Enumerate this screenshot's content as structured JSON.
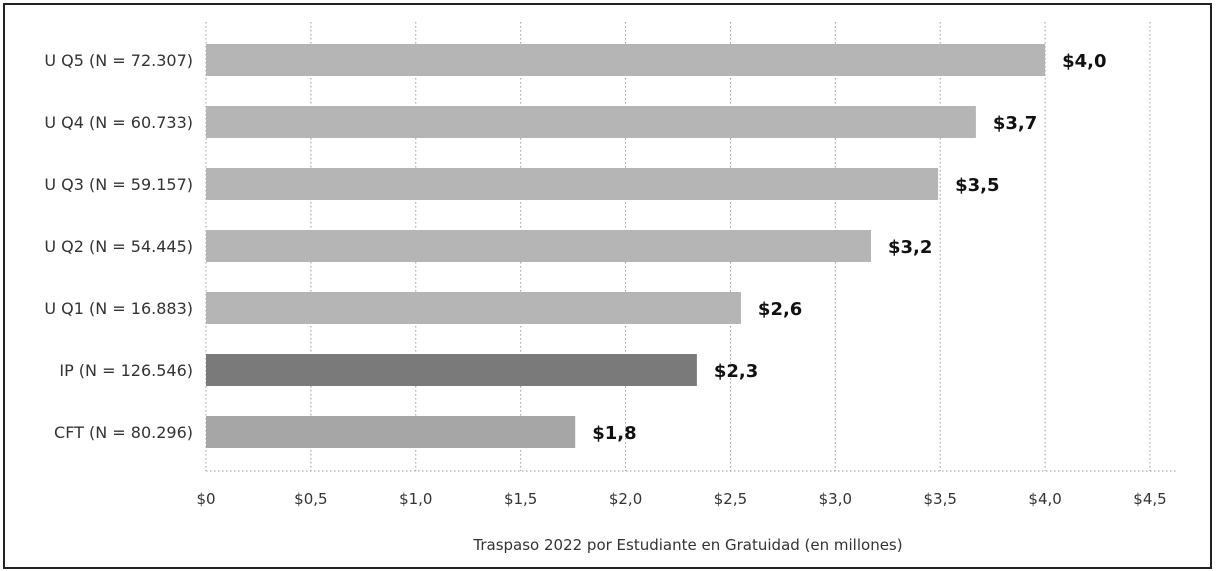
{
  "chart_data": {
    "type": "bar",
    "orientation": "horizontal",
    "categories": [
      "U Q5 (N = 72.307)",
      "U Q4 (N = 60.733)",
      "U Q3 (N = 59.157)",
      "U Q2 (N = 54.445)",
      "U Q1 (N = 16.883)",
      "IP (N = 126.546)",
      "CFT (N = 80.296)"
    ],
    "values": [
      4.0,
      3.67,
      3.49,
      3.17,
      2.55,
      2.34,
      1.76
    ],
    "value_labels": [
      "$4,0",
      "$3,7",
      "$3,5",
      "$3,2",
      "$2,6",
      "$2,3",
      "$1,8"
    ],
    "bar_colors": [
      "#b5b5b5",
      "#b5b5b5",
      "#b5b5b5",
      "#b5b5b5",
      "#b5b5b5",
      "#7a7a7a",
      "#a6a6a6"
    ],
    "xlim": [
      0,
      4.5
    ],
    "xticks": [
      0,
      0.5,
      1.0,
      1.5,
      2.0,
      2.5,
      3.0,
      3.5,
      4.0,
      4.5
    ],
    "xtick_labels": [
      "$0",
      "$0,5",
      "$1,0",
      "$1,5",
      "$2,0",
      "$2,5",
      "$3,0",
      "$3,5",
      "$4,0",
      "$4,5"
    ],
    "xlabel": "Traspaso 2022 por Estudiante en Gratuidad (en millones)",
    "ylabel": "",
    "title": "",
    "grid": "vertical-dotted",
    "legend": "none"
  }
}
